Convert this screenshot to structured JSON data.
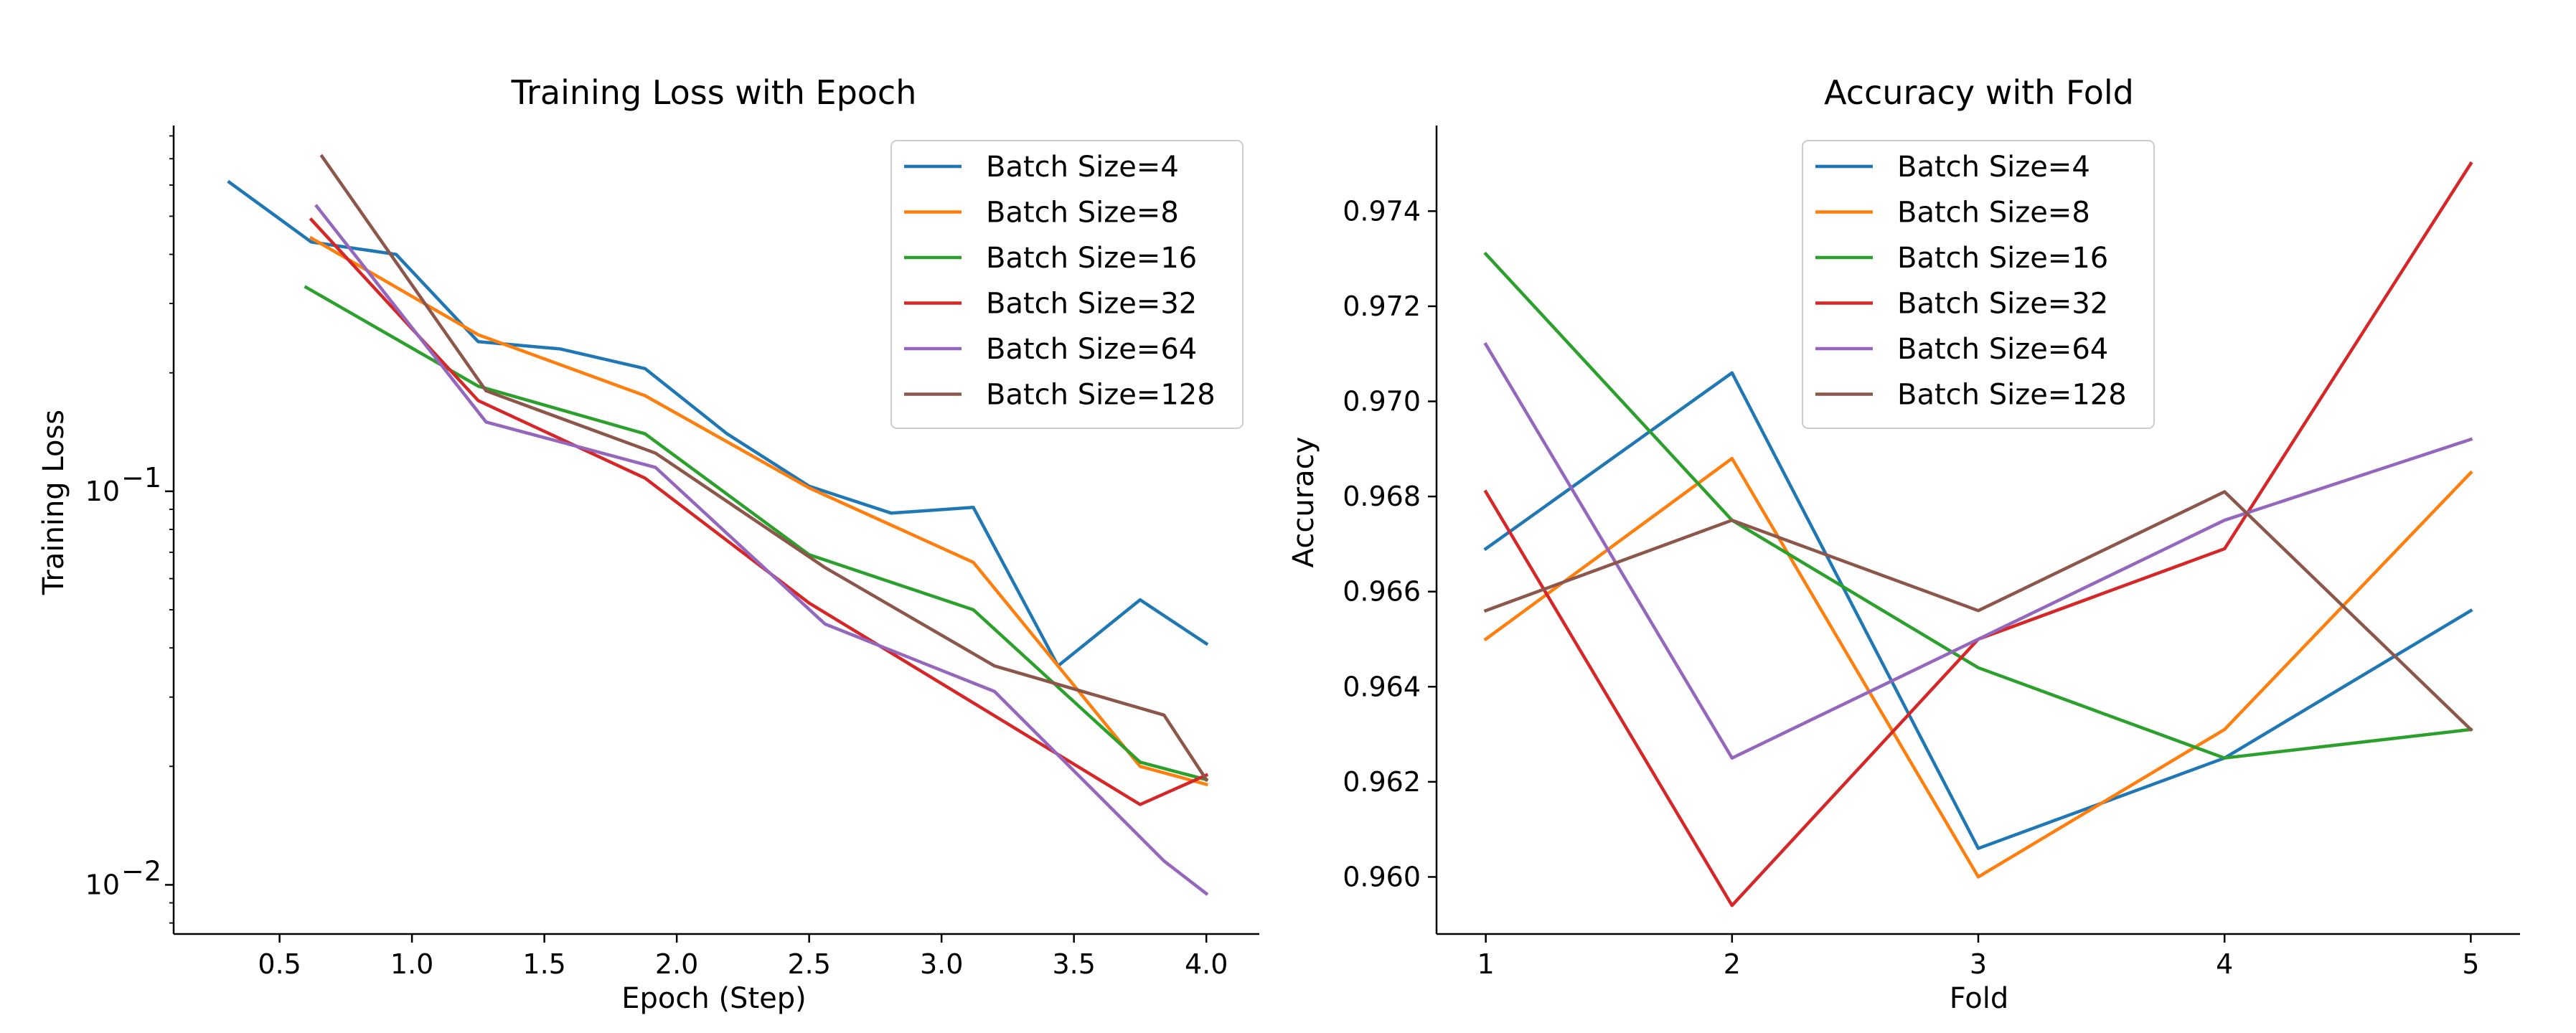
{
  "chart_data": [
    {
      "type": "line",
      "title": "Training Loss with Epoch",
      "xlabel": "Epoch (Step)",
      "ylabel": "Training Loss",
      "yscale": "log",
      "xlim": [
        0.1,
        4.2
      ],
      "ylim": [
        0.0075,
        0.85
      ],
      "grid": false,
      "legend_position": "top-right",
      "xticks": [
        0.5,
        1.0,
        1.5,
        2.0,
        2.5,
        3.0,
        3.5,
        4.0
      ],
      "xtick_labels": [
        "0.5",
        "1.0",
        "1.5",
        "2.0",
        "2.5",
        "3.0",
        "3.5",
        "4.0"
      ],
      "yticks": [
        0.1,
        0.01
      ],
      "ytick_base": "10",
      "ytick_exponents": [
        "−1",
        "−2"
      ],
      "series": [
        {
          "name": "Batch Size=4",
          "color": "#1f77b4",
          "x": [
            0.31,
            0.62,
            0.94,
            1.25,
            1.56,
            1.88,
            2.19,
            2.5,
            2.81,
            3.12,
            3.44,
            3.75,
            4.0
          ],
          "y": [
            0.61,
            0.43,
            0.4,
            0.24,
            0.23,
            0.205,
            0.14,
            0.103,
            0.088,
            0.091,
            0.036,
            0.053,
            0.041
          ]
        },
        {
          "name": "Batch Size=8",
          "color": "#ff7f0e",
          "x": [
            0.62,
            1.25,
            1.88,
            2.5,
            3.12,
            3.75,
            4.0
          ],
          "y": [
            0.44,
            0.25,
            0.175,
            0.102,
            0.066,
            0.02,
            0.018
          ]
        },
        {
          "name": "Batch Size=16",
          "color": "#2ca02c",
          "x": [
            0.6,
            1.25,
            1.88,
            2.5,
            3.12,
            3.75,
            4.0
          ],
          "y": [
            0.33,
            0.185,
            0.14,
            0.069,
            0.05,
            0.0205,
            0.0185
          ]
        },
        {
          "name": "Batch Size=32",
          "color": "#d62728",
          "x": [
            0.62,
            1.25,
            1.88,
            2.5,
            3.12,
            3.75,
            4.0
          ],
          "y": [
            0.49,
            0.17,
            0.108,
            0.052,
            0.029,
            0.016,
            0.019
          ]
        },
        {
          "name": "Batch Size=64",
          "color": "#9467bd",
          "x": [
            0.64,
            1.28,
            1.92,
            2.56,
            3.2,
            3.84,
            4.0
          ],
          "y": [
            0.53,
            0.15,
            0.115,
            0.046,
            0.031,
            0.0115,
            0.0095
          ]
        },
        {
          "name": "Batch Size=128",
          "color": "#8c564b",
          "x": [
            0.66,
            1.28,
            1.92,
            2.56,
            3.2,
            3.84,
            4.0
          ],
          "y": [
            0.71,
            0.18,
            0.125,
            0.064,
            0.036,
            0.027,
            0.0185
          ]
        }
      ]
    },
    {
      "type": "line",
      "title": "Accuracy with Fold",
      "xlabel": "Fold",
      "ylabel": "Accuracy",
      "yscale": "linear",
      "xlim": [
        0.8,
        5.2
      ],
      "ylim": [
        0.9588,
        0.9758
      ],
      "grid": false,
      "legend_position": "top-center",
      "xticks": [
        1,
        2,
        3,
        4,
        5
      ],
      "xtick_labels": [
        "1",
        "2",
        "3",
        "4",
        "5"
      ],
      "yticks": [
        0.96,
        0.962,
        0.964,
        0.966,
        0.968,
        0.97,
        0.972,
        0.974
      ],
      "ytick_labels": [
        "0.960",
        "0.962",
        "0.964",
        "0.966",
        "0.968",
        "0.970",
        "0.972",
        "0.974"
      ],
      "series": [
        {
          "name": "Batch Size=4",
          "color": "#1f77b4",
          "x": [
            1,
            2,
            3,
            4,
            5
          ],
          "y": [
            0.9669,
            0.9706,
            0.9606,
            0.9625,
            0.9656
          ]
        },
        {
          "name": "Batch Size=8",
          "color": "#ff7f0e",
          "x": [
            1,
            2,
            3,
            4,
            5
          ],
          "y": [
            0.965,
            0.9688,
            0.96,
            0.9631,
            0.9685
          ]
        },
        {
          "name": "Batch Size=16",
          "color": "#2ca02c",
          "x": [
            1,
            2,
            3,
            4,
            5
          ],
          "y": [
            0.9731,
            0.9675,
            0.9644,
            0.9625,
            0.9631
          ]
        },
        {
          "name": "Batch Size=32",
          "color": "#d62728",
          "x": [
            1,
            2,
            3,
            4,
            5
          ],
          "y": [
            0.9681,
            0.9594,
            0.965,
            0.9669,
            0.975
          ]
        },
        {
          "name": "Batch Size=64",
          "color": "#9467bd",
          "x": [
            1,
            2,
            3,
            4,
            5
          ],
          "y": [
            0.9712,
            0.9625,
            0.965,
            0.9675,
            0.9692
          ]
        },
        {
          "name": "Batch Size=128",
          "color": "#8c564b",
          "x": [
            1,
            2,
            3,
            4,
            5
          ],
          "y": [
            0.9656,
            0.9675,
            0.9656,
            0.9681,
            0.9631
          ]
        }
      ]
    }
  ]
}
